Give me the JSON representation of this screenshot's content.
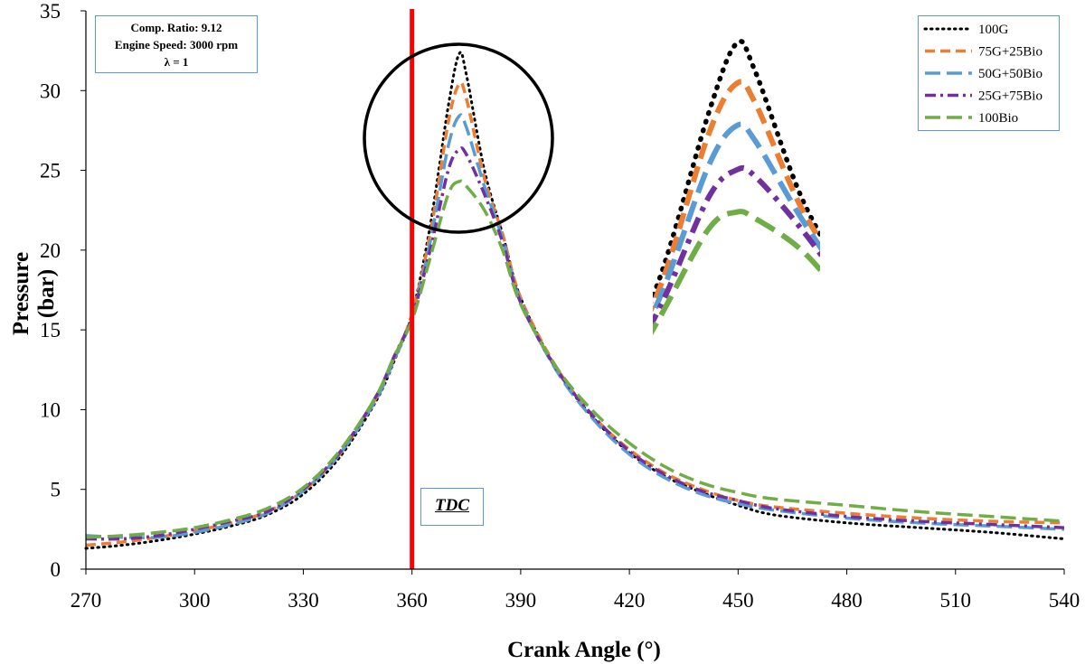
{
  "chart_data": {
    "type": "line",
    "xlabel": "Crank Angle (°)",
    "ylabel": "Pressure (bar)",
    "xlim": [
      270,
      540
    ],
    "ylim": [
      0,
      35
    ],
    "xticks": [
      270,
      300,
      330,
      360,
      390,
      420,
      450,
      480,
      510,
      540
    ],
    "yticks": [
      0,
      5,
      10,
      15,
      20,
      25,
      30,
      35
    ],
    "grid": false,
    "legend_position": "top-right",
    "annotations": {
      "conditions": [
        "Comp. Ratio: 9.12",
        "Engine Speed: 3000 rpm",
        "λ = 1"
      ],
      "tdc_label": "TDC",
      "tdc_x": 360
    },
    "series": [
      {
        "name": "100G",
        "color": "#000000",
        "style": "dotted",
        "points": [
          [
            270,
            1.3
          ],
          [
            280,
            1.5
          ],
          [
            290,
            1.8
          ],
          [
            300,
            2.2
          ],
          [
            310,
            2.7
          ],
          [
            320,
            3.4
          ],
          [
            330,
            4.7
          ],
          [
            340,
            7.0
          ],
          [
            350,
            10.5
          ],
          [
            355,
            13.0
          ],
          [
            360,
            16.0
          ],
          [
            365,
            21.5
          ],
          [
            370,
            29.0
          ],
          [
            373,
            32.3
          ],
          [
            375,
            31.0
          ],
          [
            380,
            25.0
          ],
          [
            385,
            21.0
          ],
          [
            390,
            17.0
          ],
          [
            400,
            12.5
          ],
          [
            410,
            9.5
          ],
          [
            420,
            7.3
          ],
          [
            430,
            5.8
          ],
          [
            440,
            4.8
          ],
          [
            450,
            4.0
          ],
          [
            460,
            3.4
          ],
          [
            480,
            2.9
          ],
          [
            500,
            2.6
          ],
          [
            520,
            2.3
          ],
          [
            540,
            1.9
          ]
        ]
      },
      {
        "name": "75G+25Bio",
        "color": "#ed7d31",
        "style": "dashed",
        "points": [
          [
            270,
            1.5
          ],
          [
            280,
            1.7
          ],
          [
            290,
            2.0
          ],
          [
            300,
            2.4
          ],
          [
            310,
            2.9
          ],
          [
            320,
            3.6
          ],
          [
            330,
            4.9
          ],
          [
            340,
            7.2
          ],
          [
            350,
            10.7
          ],
          [
            355,
            13.2
          ],
          [
            360,
            16.0
          ],
          [
            365,
            21.0
          ],
          [
            370,
            28.0
          ],
          [
            373,
            30.4
          ],
          [
            375,
            29.5
          ],
          [
            380,
            24.5
          ],
          [
            385,
            21.0
          ],
          [
            390,
            17.0
          ],
          [
            400,
            12.6
          ],
          [
            410,
            9.6
          ],
          [
            420,
            7.5
          ],
          [
            430,
            6.0
          ],
          [
            440,
            5.0
          ],
          [
            450,
            4.3
          ],
          [
            460,
            3.9
          ],
          [
            480,
            3.5
          ],
          [
            500,
            3.2
          ],
          [
            520,
            3.0
          ],
          [
            540,
            2.9
          ]
        ]
      },
      {
        "name": "50G+50Bio",
        "color": "#5b9bd5",
        "style": "dashed-long",
        "points": [
          [
            270,
            2.1
          ],
          [
            280,
            2.0
          ],
          [
            290,
            2.0
          ],
          [
            300,
            2.3
          ],
          [
            310,
            2.8
          ],
          [
            320,
            3.5
          ],
          [
            330,
            4.9
          ],
          [
            340,
            7.2
          ],
          [
            350,
            10.6
          ],
          [
            355,
            13.1
          ],
          [
            360,
            15.8
          ],
          [
            365,
            20.5
          ],
          [
            370,
            26.5
          ],
          [
            373,
            28.4
          ],
          [
            375,
            27.7
          ],
          [
            380,
            24.0
          ],
          [
            385,
            20.7
          ],
          [
            390,
            16.8
          ],
          [
            400,
            12.4
          ],
          [
            410,
            9.4
          ],
          [
            420,
            7.2
          ],
          [
            430,
            5.7
          ],
          [
            440,
            4.7
          ],
          [
            450,
            4.1
          ],
          [
            460,
            3.7
          ],
          [
            480,
            3.2
          ],
          [
            500,
            2.9
          ],
          [
            520,
            2.7
          ],
          [
            540,
            2.5
          ]
        ]
      },
      {
        "name": "25G+75Bio",
        "color": "#7030a0",
        "style": "dash-dot",
        "points": [
          [
            270,
            1.9
          ],
          [
            280,
            1.9
          ],
          [
            290,
            2.1
          ],
          [
            300,
            2.5
          ],
          [
            310,
            3.0
          ],
          [
            320,
            3.6
          ],
          [
            330,
            5.0
          ],
          [
            340,
            7.3
          ],
          [
            350,
            10.8
          ],
          [
            355,
            13.3
          ],
          [
            360,
            15.8
          ],
          [
            365,
            20.0
          ],
          [
            370,
            25.0
          ],
          [
            373,
            26.3
          ],
          [
            375,
            26.0
          ],
          [
            380,
            23.5
          ],
          [
            385,
            20.5
          ],
          [
            390,
            16.7
          ],
          [
            400,
            12.5
          ],
          [
            410,
            9.6
          ],
          [
            420,
            7.4
          ],
          [
            430,
            5.9
          ],
          [
            440,
            4.9
          ],
          [
            450,
            4.3
          ],
          [
            460,
            3.8
          ],
          [
            480,
            3.3
          ],
          [
            500,
            3.0
          ],
          [
            520,
            2.8
          ],
          [
            540,
            2.6
          ]
        ]
      },
      {
        "name": "100Bio",
        "color": "#70ad47",
        "style": "dashed-long",
        "points": [
          [
            270,
            2.0
          ],
          [
            280,
            2.1
          ],
          [
            290,
            2.3
          ],
          [
            300,
            2.6
          ],
          [
            310,
            3.1
          ],
          [
            320,
            3.8
          ],
          [
            330,
            5.1
          ],
          [
            340,
            7.4
          ],
          [
            350,
            10.8
          ],
          [
            355,
            13.3
          ],
          [
            360,
            15.6
          ],
          [
            365,
            19.5
          ],
          [
            370,
            23.5
          ],
          [
            373,
            24.3
          ],
          [
            375,
            24.0
          ],
          [
            380,
            22.5
          ],
          [
            385,
            20.0
          ],
          [
            390,
            16.6
          ],
          [
            400,
            12.6
          ],
          [
            410,
            9.9
          ],
          [
            420,
            7.9
          ],
          [
            430,
            6.4
          ],
          [
            440,
            5.4
          ],
          [
            450,
            4.8
          ],
          [
            460,
            4.4
          ],
          [
            480,
            4.0
          ],
          [
            500,
            3.6
          ],
          [
            520,
            3.3
          ],
          [
            540,
            3.0
          ]
        ]
      }
    ]
  }
}
